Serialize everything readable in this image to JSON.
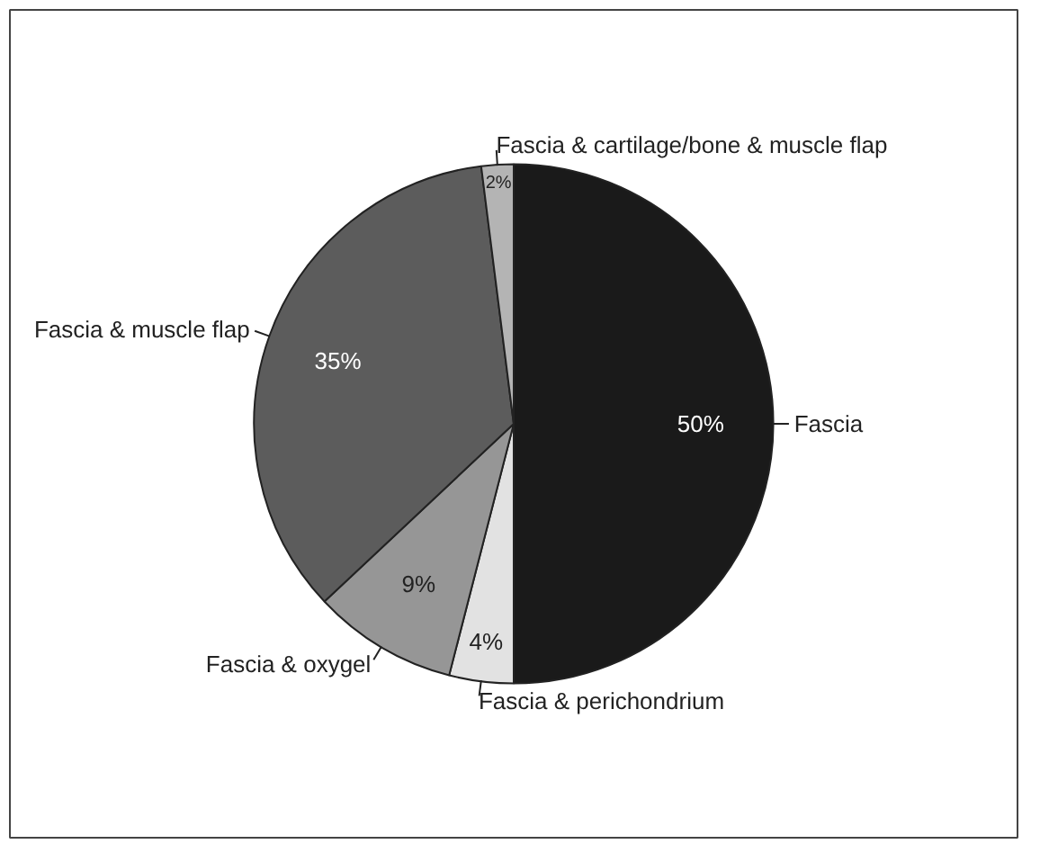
{
  "chart_data": {
    "type": "pie",
    "categories": [
      "Fascia",
      "Fascia & perichondrium",
      "Fascia & oxygel",
      "Fascia & muscle flap",
      "Fascia & cartilage/bone & muscle flap"
    ],
    "values": [
      50,
      4,
      9,
      35,
      2
    ],
    "value_labels": [
      "50%",
      "4%",
      "9%",
      "35%",
      "2%"
    ],
    "colors": [
      "#1a1a1a",
      "#e2e2e2",
      "#969696",
      "#5c5c5c",
      "#b4b4b4"
    ]
  }
}
